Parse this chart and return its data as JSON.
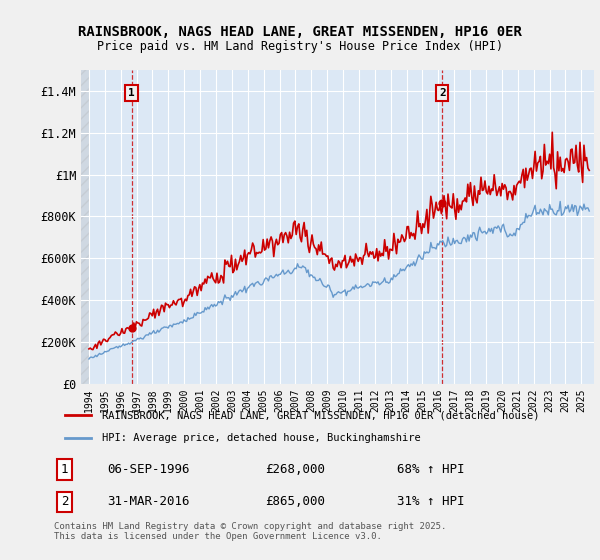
{
  "title": "RAINSBROOK, NAGS HEAD LANE, GREAT MISSENDEN, HP16 0ER",
  "subtitle": "Price paid vs. HM Land Registry's House Price Index (HPI)",
  "ylim": [
    0,
    1500000
  ],
  "yticks": [
    0,
    200000,
    400000,
    600000,
    800000,
    1000000,
    1200000,
    1400000
  ],
  "ytick_labels": [
    "£0",
    "£200K",
    "£400K",
    "£600K",
    "£800K",
    "£1M",
    "£1.2M",
    "£1.4M"
  ],
  "sale1_year": 1996.68,
  "sale1_price": 268000,
  "sale2_year": 2016.25,
  "sale2_price": 865000,
  "red_color": "#cc0000",
  "blue_color": "#6699cc",
  "plot_bg_color": "#dce8f5",
  "background_color": "#f0f0f0",
  "legend_red_label": "RAINSBROOK, NAGS HEAD LANE, GREAT MISSENDEN, HP16 0ER (detached house)",
  "legend_blue_label": "HPI: Average price, detached house, Buckinghamshire",
  "annotation1_date": "06-SEP-1996",
  "annotation1_price": "£268,000",
  "annotation1_hpi": "68% ↑ HPI",
  "annotation2_date": "31-MAR-2016",
  "annotation2_price": "£865,000",
  "annotation2_hpi": "31% ↑ HPI",
  "footer": "Contains HM Land Registry data © Crown copyright and database right 2025.\nThis data is licensed under the Open Government Licence v3.0.",
  "xmin": 1993.5,
  "xmax": 2025.8
}
